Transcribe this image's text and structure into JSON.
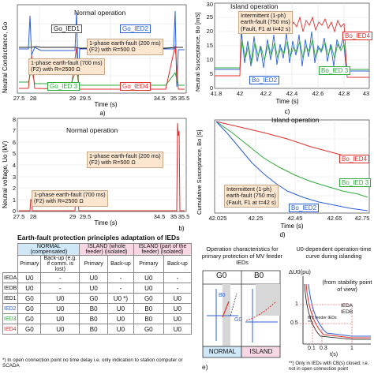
{
  "panel_a": {
    "ylabel": "Neutral Conductance, Go",
    "xlabel": "Time (s)",
    "caption": "a)",
    "title": "Normal operation",
    "xticks": [
      "27.5",
      "28",
      "29",
      "29.5",
      "34.5",
      "35",
      "35.5"
    ],
    "legend": {
      "ied1": "Go_IED1",
      "ied2": "Go_IED2",
      "ied3": "Go_IED 3",
      "ied4": "Go_IED4"
    },
    "ann1": {
      "line1": "1-phase earth-fault",
      "line1b": "(200 ms)",
      "line2": "(F2) with R",
      "line2b": "=500 Ω"
    },
    "ann2": {
      "line1": "1-phase earth-fault",
      "line1b": "(700 ms)",
      "line2": "(F2) with R",
      "line2b": "=2500 Ω"
    },
    "colors": {
      "ied1": "#222222",
      "ied2": "#2a5fd6",
      "ied3": "#2eaa3c",
      "ied4": "#e0302f"
    }
  },
  "panel_b": {
    "ylabel": "Neutral voltage, Uo (kV)",
    "xlabel": "Time (s)",
    "caption": "b)",
    "title": "Normal operation",
    "yticks": [
      "0",
      "1",
      "2",
      "3",
      "4",
      "5",
      "6",
      "7",
      "8"
    ],
    "xticks": [
      "27.5",
      "28",
      "29",
      "29.5",
      "34.5",
      "35",
      "35.5"
    ],
    "ann1": {
      "line1": "1-phase earth-fault",
      "line1b": "(200 ms)",
      "line2": "(F2) with R=500 Ω"
    },
    "ann2": {
      "line1": "1-phase earth-fault",
      "line1b": "(700 ms)",
      "line2": "(F2) with R=2500 Ω"
    }
  },
  "panel_c": {
    "ylabel": "Neutral Susceptance, Bo [mS]",
    "xlabel": "Time (s)",
    "caption": "c)",
    "title": "Island operation",
    "yticks": [
      "0",
      "5",
      "10",
      "15",
      "20",
      "25",
      "30"
    ],
    "xticks": [
      "41.8",
      "42",
      "42.2",
      "42.4",
      "42.6",
      "42.8",
      "43"
    ],
    "ann": {
      "line1": "Intermittent (1-ph)",
      "line2": "earth-fault (750 ms)",
      "line3": "(Fault, F1 at t=42 s)"
    },
    "legend": {
      "ied2": "Bo_IED2",
      "ied3": "Bo_IED 3",
      "ied4": "Bo_IED4"
    }
  },
  "panel_d": {
    "ylabel": "Cumulative Susceptance, Bo [S]",
    "xlabel": "Time (s)",
    "caption": "d)",
    "title": "Island operation",
    "xticks": [
      "42.025",
      "42.25",
      "42.45",
      "42.65",
      "42.75"
    ],
    "ann": {
      "line1": "Intermittent (1-ph)",
      "line2": "earth-fault (750 ms)",
      "line3": "(Fault, F1 at t=42 s)"
    },
    "legend": {
      "ied2": "Bo_IED2",
      "ied3": "Bo_IED 3",
      "ied4": "Bo_IED4"
    }
  },
  "table": {
    "title": "Earth-fault protection principles adaptation of IEDs",
    "normal_header": "NORMAL (compensated)",
    "island1_header": "ISLAND (whole feeder) (isolated)",
    "island2_header": "ISLAND (part of the feeder) (isolated)",
    "sub": {
      "primary": "Primary",
      "backup_n": "Back-up (e.g. if comm. is lost)",
      "backup": "Back-up"
    },
    "rows": [
      {
        "name": "IEDA",
        "color": "#111111",
        "c": [
          "U0",
          "-",
          "U0",
          "-",
          "U0",
          "-"
        ]
      },
      {
        "name": "IEDB",
        "color": "#111111",
        "c": [
          "U0",
          "-",
          "U0",
          "-",
          "U0",
          "-"
        ]
      },
      {
        "name": "IED1",
        "color": "#111111",
        "c": [
          "G0",
          "U0",
          "G0",
          "U0 *)",
          "G0",
          "U0"
        ]
      },
      {
        "name": "IED2",
        "color": "#2a5fd6",
        "c": [
          "G0",
          "U0",
          "B0",
          "U0",
          "B0",
          "U0"
        ]
      },
      {
        "name": "IED3",
        "color": "#2eaa3c",
        "c": [
          "G0",
          "U0",
          "B0",
          "U0",
          "B0",
          "U0"
        ]
      },
      {
        "name": "IED4",
        "color": "#e0302f",
        "c": [
          "G0",
          "U0",
          "B0",
          "U0",
          "G0",
          "U0"
        ]
      }
    ],
    "footnote": "*) In open connection point no time delay i.e. only indication to station computer or SCADA"
  },
  "op_char": {
    "title": "Operation characteristics for primary protection of MV feeder IEDs",
    "g0": "G0",
    "b0": "B0",
    "normal": "NORMAL",
    "island": "ISLAND",
    "b0_axis": "B0",
    "g0_axis": "G0"
  },
  "u0_curve": {
    "title": "U0-dependent operation-time curve during islanding",
    "yaxis": "ΔU0(pu)",
    "note": "(from stability point of view)",
    "legend_a": "IEDA",
    "legend_b": "IEDB",
    "mv_feeder": "MV feeder IEDs **)",
    "yticks": [
      "1",
      "0.5"
    ],
    "xticks": [
      "0.1",
      "0.3",
      "1"
    ],
    "xlabel": "t(s)",
    "footnote": "**) Only in IEDs with CB(s) closed; i.e. not in open connection point"
  },
  "caption_e": "e)"
}
